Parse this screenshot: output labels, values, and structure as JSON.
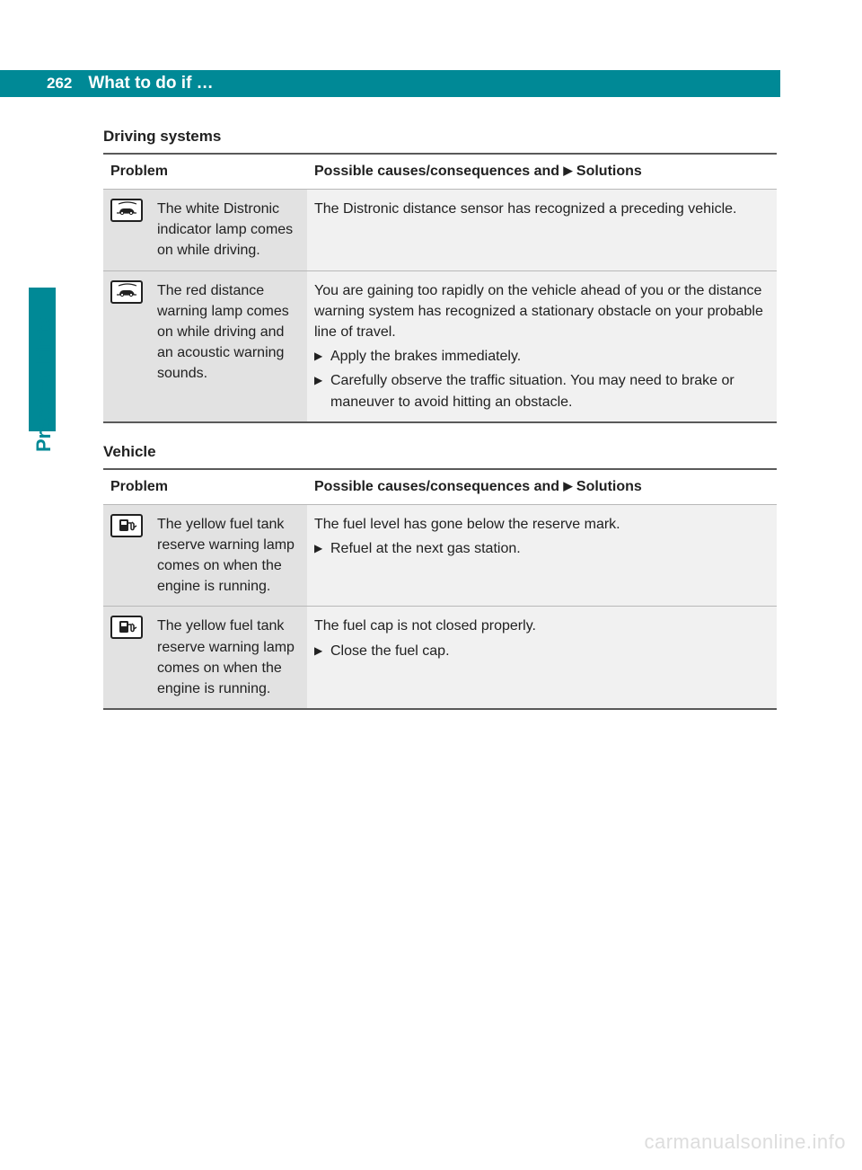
{
  "page": {
    "number": "262",
    "chapter": "What to do if …",
    "side_label": "Practical hints",
    "watermark": "carmanualsonline.info"
  },
  "sections": [
    {
      "title": "Driving systems",
      "header_problem": "Problem",
      "header_solution_pre": "Possible causes/consequences and ",
      "header_solution_post": " Solutions",
      "rows": [
        {
          "icon": "distance",
          "problem": "The white Distronic indicator lamp comes on while driving.",
          "intro": "The Distronic distance sensor has recognized a preceding vehicle.",
          "steps": []
        },
        {
          "icon": "distance",
          "problem": "The red distance warning lamp comes on while driving and an acoustic warning sounds.",
          "intro": "You are gaining too rapidly on the vehicle ahead of you or the distance warning system has recognized a stationary obstacle on your probable line of travel.",
          "steps": [
            "Apply the brakes immediately.",
            "Carefully observe the traffic situation. You may need to brake or maneuver to avoid hitting an obstacle."
          ]
        }
      ]
    },
    {
      "title": "Vehicle",
      "header_problem": "Problem",
      "header_solution_pre": "Possible causes/consequences and ",
      "header_solution_post": " Solutions",
      "rows": [
        {
          "icon": "fuel",
          "problem": "The yellow fuel tank reserve warning lamp comes on when the engine is running.",
          "intro": "The fuel level has gone below the reserve mark.",
          "steps": [
            "Refuel at the next gas station."
          ]
        },
        {
          "icon": "fuel",
          "problem": "The yellow fuel tank reserve warning lamp comes on when the engine is running.",
          "intro": "The fuel cap is not closed properly.",
          "steps": [
            "Close the fuel cap."
          ]
        }
      ]
    }
  ],
  "colors": {
    "teal": "#008996",
    "row_problem_bg": "#e2e2e2",
    "row_solution_bg": "#f1f1f1",
    "watermark": "#dddddd"
  }
}
